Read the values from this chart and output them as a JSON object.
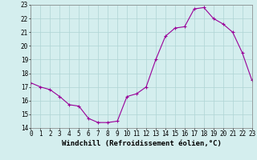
{
  "x": [
    0,
    1,
    2,
    3,
    4,
    5,
    6,
    7,
    8,
    9,
    10,
    11,
    12,
    13,
    14,
    15,
    16,
    17,
    18,
    19,
    20,
    21,
    22,
    23
  ],
  "y": [
    17.3,
    17.0,
    16.8,
    16.3,
    15.7,
    15.6,
    14.7,
    14.4,
    14.4,
    14.5,
    16.3,
    16.5,
    17.0,
    19.0,
    20.7,
    21.3,
    21.4,
    22.7,
    22.8,
    22.0,
    21.6,
    21.0,
    19.5,
    17.5
  ],
  "line_color": "#990099",
  "marker": "+",
  "marker_size": 3,
  "linewidth": 0.8,
  "xlabel": "Windchill (Refroidissement éolien,°C)",
  "bg_color": "#d4eeee",
  "grid_color": "#aed4d4",
  "ylim": [
    14,
    23
  ],
  "xlim": [
    0,
    23
  ],
  "yticks": [
    14,
    15,
    16,
    17,
    18,
    19,
    20,
    21,
    22,
    23
  ],
  "xticks": [
    0,
    1,
    2,
    3,
    4,
    5,
    6,
    7,
    8,
    9,
    10,
    11,
    12,
    13,
    14,
    15,
    16,
    17,
    18,
    19,
    20,
    21,
    22,
    23
  ],
  "tick_fontsize": 5.5,
  "xlabel_fontsize": 6.5,
  "spine_color": "#808080"
}
